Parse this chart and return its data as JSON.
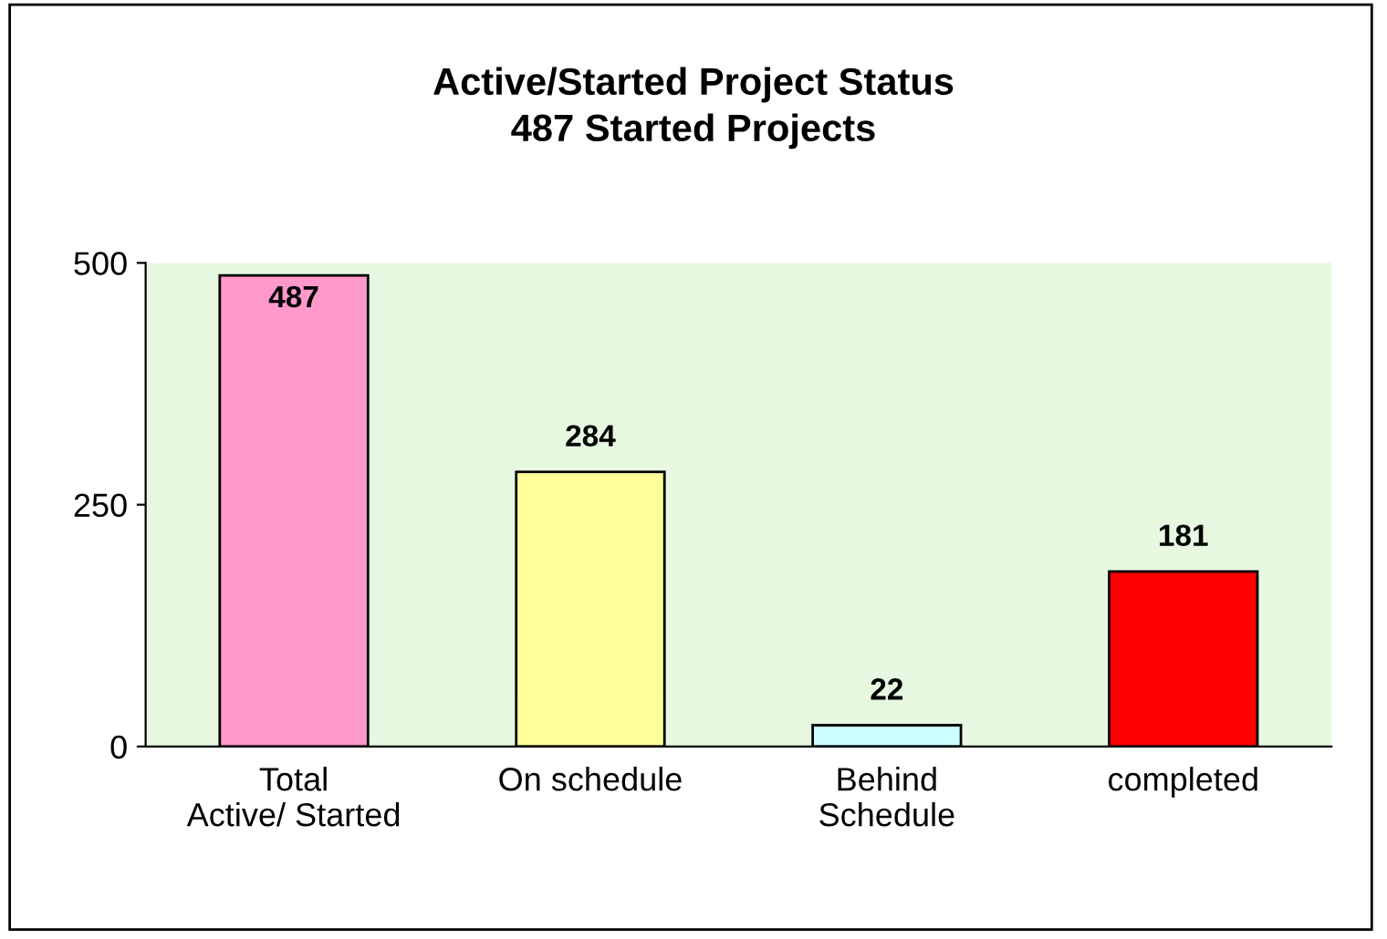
{
  "chart_data": {
    "type": "bar",
    "title": "Active/Started Project Status\n487 Started Projects",
    "categories": [
      "Total\nActive/ Started",
      "On schedule",
      "Behind\nSchedule",
      "completed"
    ],
    "values": [
      487,
      284,
      22,
      181
    ],
    "colors": [
      "#ff99cc",
      "#ffff99",
      "#ccffff",
      "#ff0000"
    ],
    "ylim": [
      0,
      500
    ],
    "yticks": [
      0,
      250,
      500
    ],
    "grid": false,
    "data_labels": true
  }
}
